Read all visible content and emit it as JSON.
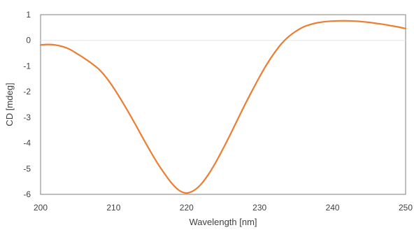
{
  "chart_data": {
    "type": "line",
    "title": "",
    "xlabel": "Wavelength [nm]",
    "ylabel": "CD [mdeg]",
    "xlim": [
      200,
      250
    ],
    "ylim": [
      -6,
      1
    ],
    "xticks": [
      200,
      210,
      220,
      230,
      240,
      250
    ],
    "yticks": [
      -6,
      -5,
      -4,
      -3,
      -2,
      -1,
      0,
      1
    ],
    "xtick_labels": [
      "200",
      "210",
      "220",
      "230",
      "240",
      "250"
    ],
    "ytick_labels": [
      "-6",
      "-5",
      "-4",
      "-3",
      "-2",
      "-1",
      "0",
      "1"
    ],
    "grid": false,
    "zero_line": true,
    "legend": "none",
    "series": [
      {
        "color": "#ED7D31",
        "x": [
          200,
          201,
          202,
          203,
          204,
          205,
          206,
          207,
          208,
          209,
          210,
          211,
          212,
          213,
          214,
          215,
          216,
          217,
          218,
          219,
          220,
          221,
          222,
          223,
          224,
          225,
          226,
          227,
          228,
          229,
          230,
          231,
          232,
          233,
          234,
          235,
          236,
          237,
          238,
          239,
          240,
          241,
          242,
          243,
          244,
          245,
          246,
          247,
          248,
          249,
          250
        ],
        "y": [
          -0.18,
          -0.16,
          -0.18,
          -0.24,
          -0.35,
          -0.52,
          -0.7,
          -0.9,
          -1.13,
          -1.45,
          -1.85,
          -2.3,
          -2.78,
          -3.28,
          -3.8,
          -4.3,
          -4.78,
          -5.2,
          -5.58,
          -5.85,
          -5.95,
          -5.85,
          -5.6,
          -5.22,
          -4.75,
          -4.22,
          -3.66,
          -3.08,
          -2.5,
          -1.95,
          -1.42,
          -0.93,
          -0.5,
          -0.13,
          0.15,
          0.36,
          0.52,
          0.62,
          0.69,
          0.73,
          0.75,
          0.76,
          0.76,
          0.75,
          0.73,
          0.7,
          0.66,
          0.62,
          0.57,
          0.52,
          0.46
        ]
      }
    ]
  }
}
